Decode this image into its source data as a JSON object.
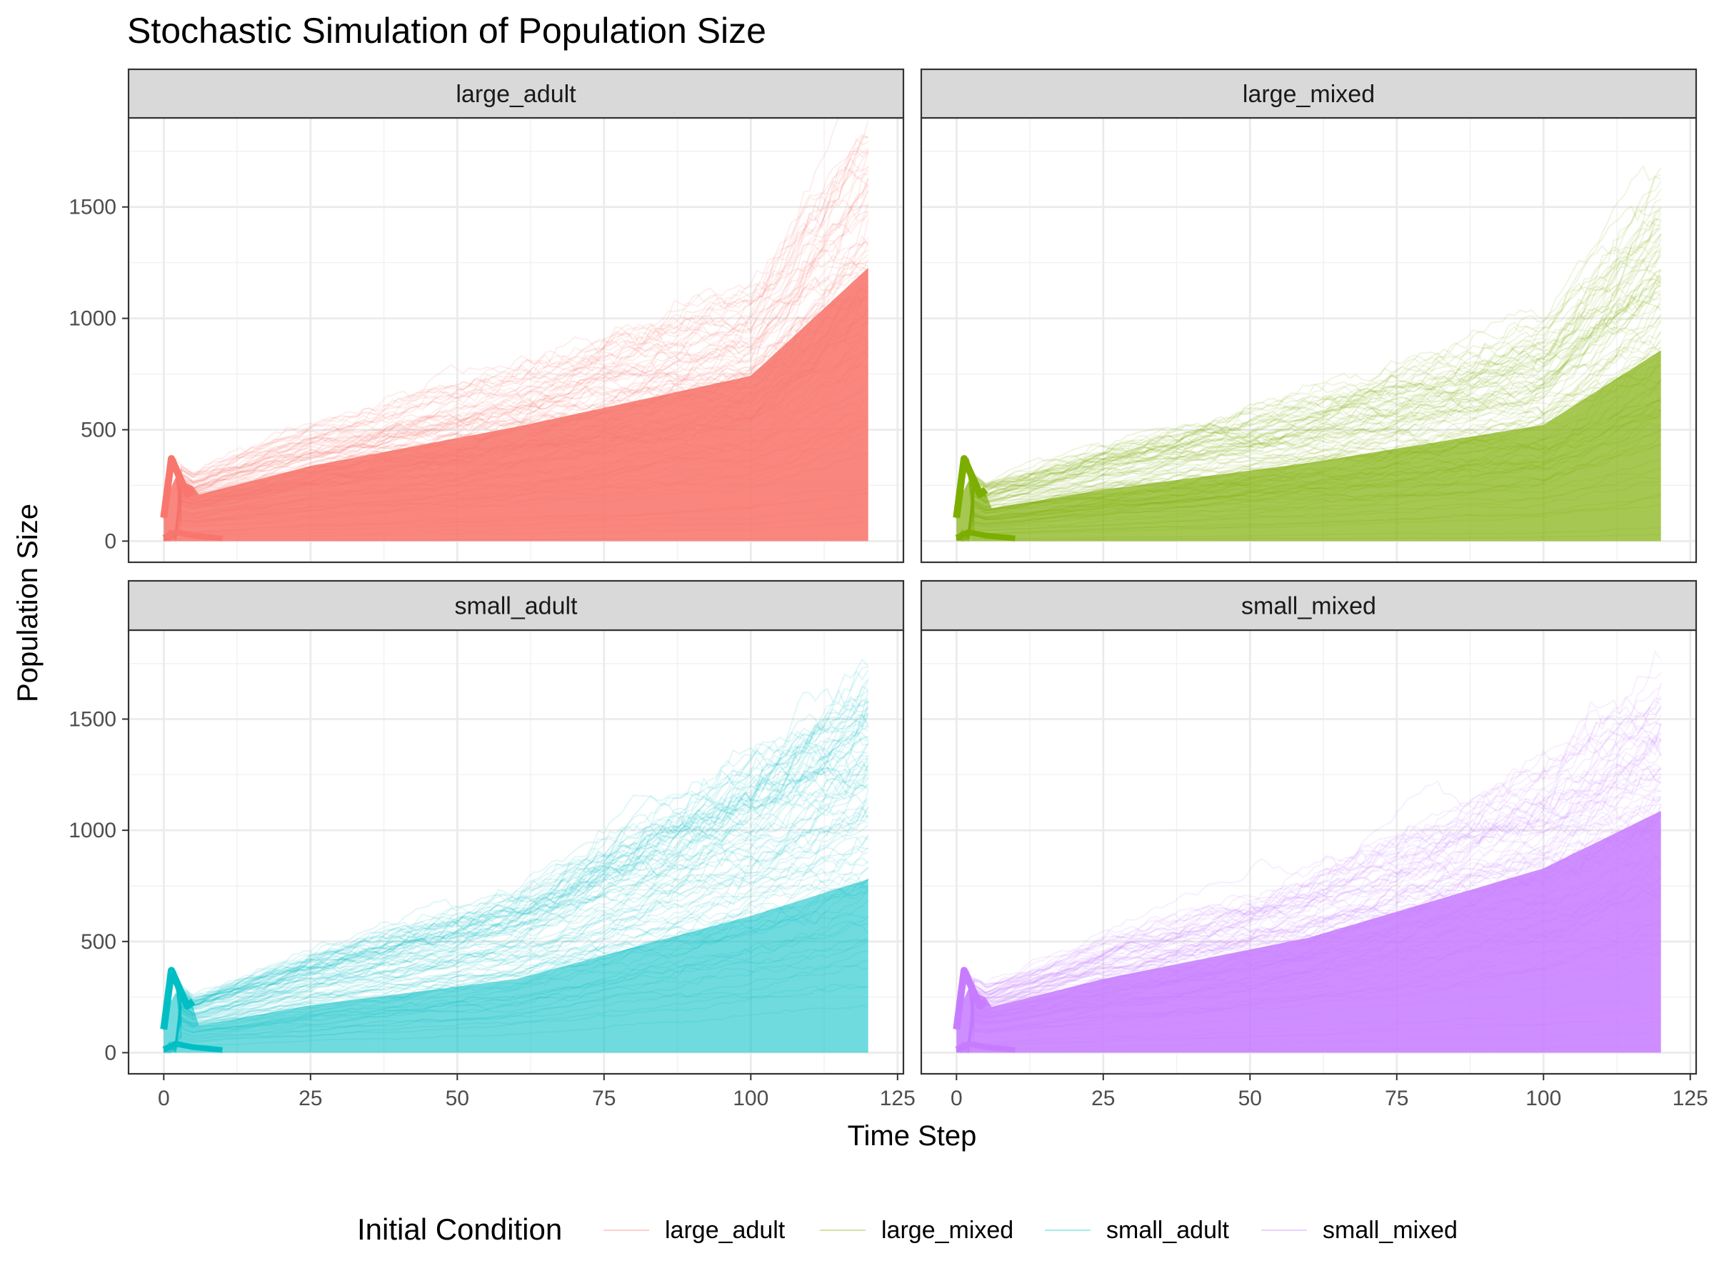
{
  "chart_data": {
    "type": "line",
    "title": "Stochastic Simulation of Population Size",
    "xlabel": "Time Step",
    "ylabel": "Population Size",
    "xlim": [
      -6,
      126
    ],
    "ylim": [
      -95,
      1900
    ],
    "x_ticks": [
      0,
      25,
      50,
      75,
      100,
      125
    ],
    "y_ticks": [
      0,
      500,
      1000,
      1500
    ],
    "grid": true,
    "legend": {
      "title": "Initial Condition",
      "position": "bottom"
    },
    "facets": [
      {
        "label": "large_adult",
        "color": "#F8766D",
        "density": 0.88,
        "envelope_max": [
          380,
          300,
          500,
          760,
          1100,
          1820
        ]
      },
      {
        "label": "large_mixed",
        "color": "#7CAE00",
        "density": 0.55,
        "envelope_max": [
          370,
          260,
          420,
          640,
          950,
          1560
        ]
      },
      {
        "label": "small_adult",
        "color": "#00BFC4",
        "density": 0.35,
        "envelope_max": [
          380,
          250,
          450,
          700,
          1300,
          1650
        ]
      },
      {
        "label": "small_mixed",
        "color": "#C77CFF",
        "density": 0.85,
        "envelope_max": [
          380,
          300,
          500,
          780,
          1250,
          1640
        ]
      }
    ],
    "series_names": [
      "large_adult",
      "large_mixed",
      "small_adult",
      "small_mixed"
    ],
    "series_colors": [
      "#F8766D",
      "#7CAE00",
      "#00BFC4",
      "#C77CFF"
    ],
    "envelope_x": [
      0,
      5,
      25,
      60,
      100,
      120
    ],
    "n_steps": 120
  }
}
